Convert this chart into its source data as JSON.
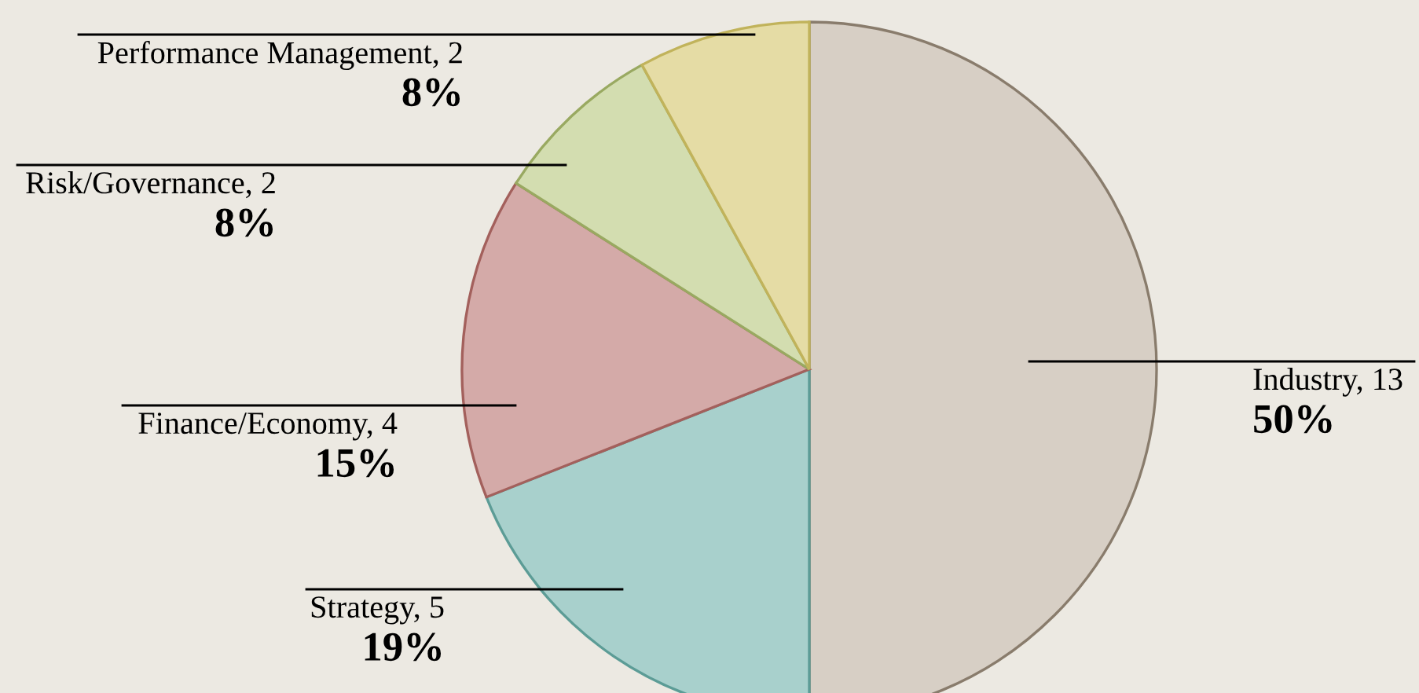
{
  "chart_data": {
    "type": "pie",
    "categories": [
      "Industry, 13",
      "Strategy, 5",
      "Finance/Economy, 4",
      "Risk/Governance, 2",
      "Performance Management, 2"
    ],
    "values": [
      50,
      19,
      15,
      8,
      8
    ],
    "colors": [
      "#d7cfc5",
      "#a8d0cc",
      "#d4aaa8",
      "#d3ddb0",
      "#e5dca5"
    ],
    "value_labels": [
      "50%",
      "19%",
      "15%",
      "8%",
      "8%"
    ],
    "legend": false
  }
}
